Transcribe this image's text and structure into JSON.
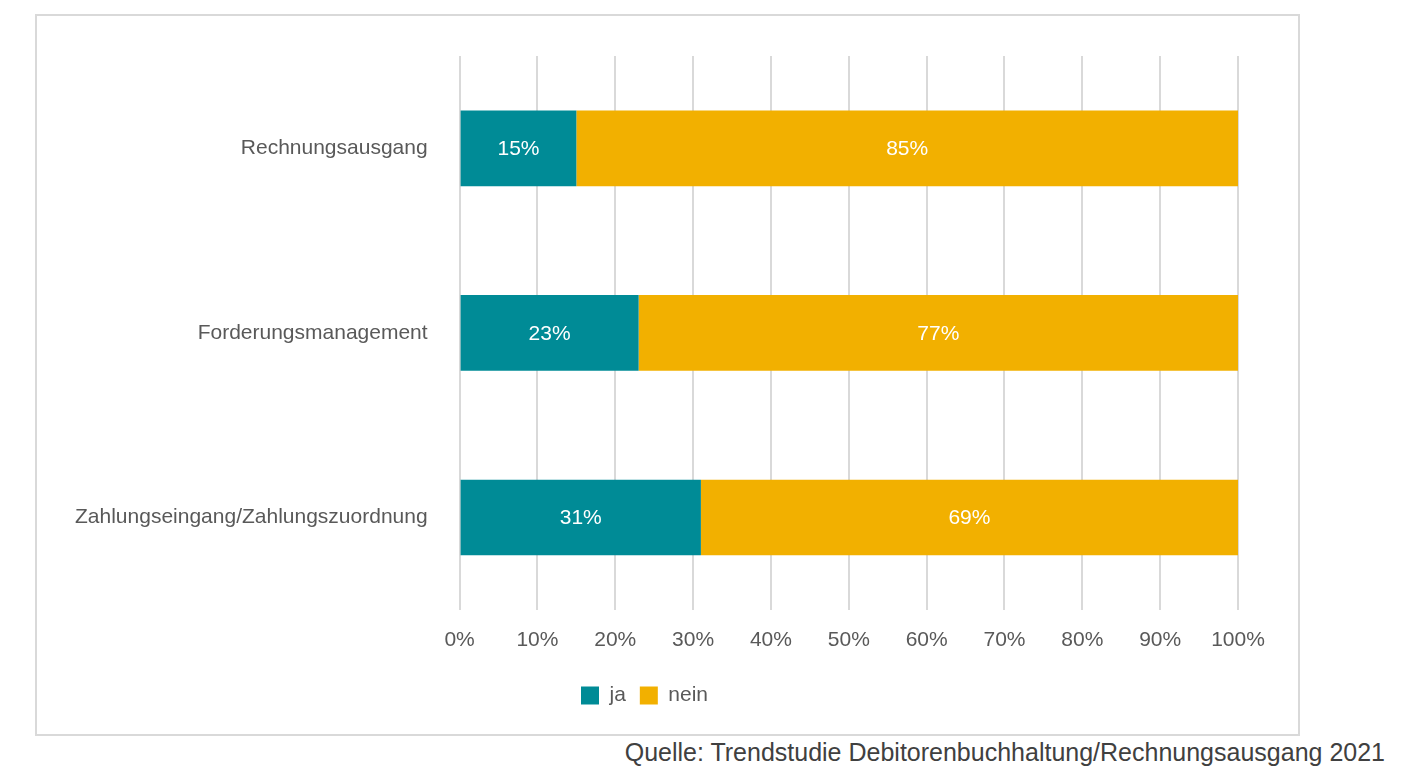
{
  "chart_data": {
    "type": "bar",
    "orientation": "horizontal",
    "stacked": true,
    "data_labels": true,
    "grid": true,
    "legend": "bottom",
    "annotations": [
      "Quelle: Trendstudie Debitorenbuchhaltung/Rechnungsausgang 2021"
    ],
    "categories": [
      "Rechnungsausgang",
      "Forderungsmanagement",
      "Zahlungseingang/Zahlungszuordnung"
    ],
    "series": [
      {
        "name": "ja",
        "color": "#008b96",
        "values": [
          15,
          23,
          31
        ],
        "value_labels": [
          "15%",
          "23%",
          "31%"
        ]
      },
      {
        "name": "nein",
        "color": "#f2b000",
        "values": [
          85,
          77,
          69
        ],
        "value_labels": [
          "85%",
          "77%",
          "69%"
        ]
      }
    ],
    "xlim": [
      0,
      100
    ],
    "xticks": [
      {
        "value": 0,
        "label": "0%"
      },
      {
        "value": 10,
        "label": "10%"
      },
      {
        "value": 20,
        "label": "20%"
      },
      {
        "value": 30,
        "label": "30%"
      },
      {
        "value": 40,
        "label": "40%"
      },
      {
        "value": 50,
        "label": "50%"
      },
      {
        "value": 60,
        "label": "60%"
      },
      {
        "value": 70,
        "label": "70%"
      },
      {
        "value": 80,
        "label": "80%"
      },
      {
        "value": 90,
        "label": "90%"
      },
      {
        "value": 100,
        "label": "100%"
      }
    ]
  }
}
